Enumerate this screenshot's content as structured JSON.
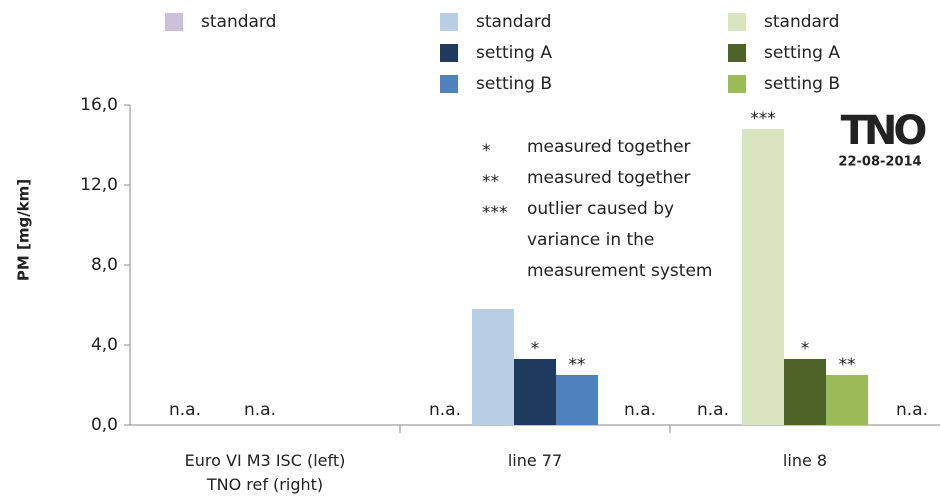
{
  "chart_data": {
    "type": "bar",
    "y_label": "PM [mg/km]",
    "categories": [
      "Euro VI M3 ISC (left)\nTNO ref (right)",
      "line 77",
      "line 8"
    ],
    "series": [
      {
        "name": "standard",
        "color": "#ccc0da",
        "values": [
          null,
          null,
          null
        ]
      },
      {
        "name": "standard",
        "color": "#b9cde5",
        "values": [
          null,
          5.8,
          null
        ]
      },
      {
        "name": "setting A",
        "color": "#1f3a5f",
        "values": [
          null,
          3.3,
          null
        ],
        "notes": [
          null,
          "*",
          null
        ]
      },
      {
        "name": "setting B",
        "color": "#4f81bd",
        "values": [
          null,
          2.5,
          null
        ],
        "notes": [
          null,
          "**",
          null
        ]
      },
      {
        "name": "standard",
        "color": "#d7e4bd",
        "values": [
          null,
          null,
          14.8
        ],
        "notes": [
          null,
          null,
          "***"
        ]
      },
      {
        "name": "setting A",
        "color": "#4f6228",
        "values": [
          null,
          null,
          3.3
        ],
        "notes": [
          null,
          null,
          "*"
        ]
      },
      {
        "name": "setting B",
        "color": "#9bbb59",
        "values": [
          null,
          null,
          2.5
        ],
        "notes": [
          null,
          null,
          "**"
        ]
      }
    ],
    "na_labels": [
      [
        "n.a.",
        "n.a."
      ],
      [
        "n.a.",
        "n.a."
      ],
      [
        "n.a.",
        "n.a."
      ]
    ],
    "ylim": [
      0,
      16
    ],
    "yticks": [
      {
        "value": 0,
        "label": "0,0"
      },
      {
        "value": 4,
        "label": "4,0"
      },
      {
        "value": 8,
        "label": "8,0"
      },
      {
        "value": 12,
        "label": "12,0"
      },
      {
        "value": 16,
        "label": "16,0"
      }
    ],
    "footnotes": [
      {
        "symbol": "*",
        "lines": [
          "measured together"
        ]
      },
      {
        "symbol": "**",
        "lines": [
          "measured together"
        ]
      },
      {
        "symbol": "***",
        "lines": [
          "outlier  caused by",
          "variance in the",
          "measurement  system"
        ]
      }
    ],
    "logo": "TNO",
    "date": "22-08-2014"
  }
}
